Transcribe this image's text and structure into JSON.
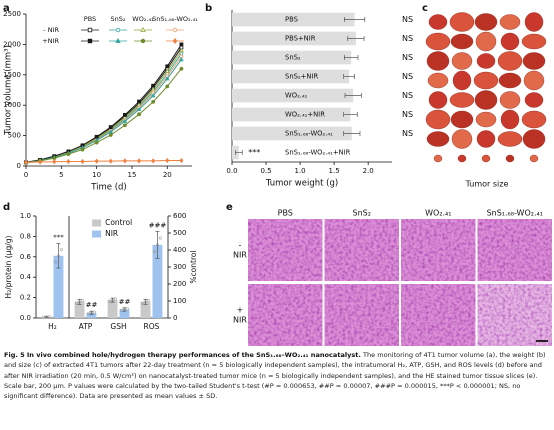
{
  "panel_labels": [
    "a",
    "b",
    "c",
    "d",
    "e"
  ],
  "chart_data": [
    {
      "type": "line",
      "xlabel": "Time (d)",
      "ylabel": "Tumor volume (mm³)",
      "x": [
        0,
        2,
        4,
        6,
        8,
        10,
        12,
        14,
        16,
        18,
        20,
        22
      ],
      "xlim": [
        0,
        23.5
      ],
      "xticks": [
        0,
        5,
        10,
        15,
        20
      ],
      "ylim": [
        0,
        2500
      ],
      "yticks": [
        0,
        500,
        1000,
        1500,
        2000,
        2500
      ],
      "legend_columns": [
        "PBS",
        "SnS₂",
        "WO₂.₄₁",
        "SnS₁.₆₈-WO₂.₄₁"
      ],
      "legend_rows": [
        "- NIR",
        "+NIR"
      ],
      "series": [
        {
          "legend_column": 0,
          "legend_row": 0,
          "color": "#1a1a1a",
          "marker": "square",
          "filled": false,
          "values": [
            60,
            100,
            160,
            235,
            330,
            470,
            625,
            820,
            1030,
            1290,
            1600,
            1950
          ]
        },
        {
          "legend_column": 1,
          "legend_row": 0,
          "color": "#2fa6a0",
          "marker": "circle",
          "filled": false,
          "values": [
            55,
            95,
            150,
            220,
            315,
            445,
            590,
            775,
            980,
            1220,
            1515,
            1850
          ]
        },
        {
          "legend_column": 2,
          "legend_row": 0,
          "color": "#9aa83a",
          "marker": "triangle",
          "filled": false,
          "values": [
            60,
            95,
            150,
            230,
            325,
            455,
            610,
            800,
            1005,
            1255,
            1560,
            1900
          ]
        },
        {
          "legend_column": 3,
          "legend_row": 0,
          "color": "#f0a070",
          "marker": "circle",
          "filled": false,
          "values": [
            55,
            90,
            145,
            215,
            305,
            430,
            575,
            755,
            955,
            1190,
            1475,
            1800
          ]
        },
        {
          "legend_column": 0,
          "legend_row": 1,
          "color": "#1a1a1a",
          "marker": "square",
          "filled": true,
          "values": [
            60,
            100,
            160,
            240,
            340,
            480,
            640,
            840,
            1060,
            1320,
            1640,
            2000
          ]
        },
        {
          "legend_column": 1,
          "legend_row": 1,
          "color": "#2fa6a0",
          "marker": "triangle",
          "filled": true,
          "values": [
            55,
            90,
            140,
            210,
            300,
            420,
            560,
            735,
            930,
            1155,
            1435,
            1750
          ]
        },
        {
          "legend_column": 2,
          "legend_row": 1,
          "color": "#6f8a2a",
          "marker": "circle",
          "filled": true,
          "values": [
            55,
            85,
            130,
            195,
            270,
            385,
            510,
            670,
            850,
            1055,
            1310,
            1600
          ]
        },
        {
          "legend_column": 3,
          "legend_row": 1,
          "color": "#f08040",
          "marker": "diamond",
          "filled": true,
          "values": [
            60,
            65,
            70,
            75,
            75,
            80,
            80,
            85,
            85,
            85,
            90,
            90
          ]
        }
      ]
    },
    {
      "type": "hbar",
      "xlabel": "Tumor weight (g)",
      "categories": [
        "PBS",
        "PBS+NIR",
        "SnS₂",
        "SnS₂+NIR",
        "WO₂.₄₁",
        "WO₂.₄₁+NIR",
        "SnS₁.₆₈-WO₂.₄₁",
        "SnS₁.₆₈-WO₂.₄₁+NIR"
      ],
      "values": [
        1.8,
        1.82,
        1.75,
        1.72,
        1.78,
        1.74,
        1.76,
        0.1
      ],
      "errors": [
        0.15,
        0.12,
        0.1,
        0.08,
        0.12,
        0.1,
        0.12,
        0.05
      ],
      "significance": [
        "NS",
        "NS",
        "NS",
        "NS",
        "NS",
        "NS",
        "NS",
        "***"
      ],
      "color": "#dedede",
      "xlim": [
        0,
        2.35
      ],
      "xticks": [
        {
          "value": 0,
          "label": "0.0"
        },
        {
          "value": 0.5,
          "label": "0.5"
        },
        {
          "value": 1,
          "label": "1.0"
        },
        {
          "value": 1.5,
          "label": "1.5"
        },
        {
          "value": 2,
          "label": "2.0"
        }
      ]
    },
    {
      "type": "bar",
      "ylabel": "H₂/protein (μg/g)",
      "y2label": "%control",
      "categories": [
        "H₂",
        "ATP",
        "GSH",
        "ROS"
      ],
      "axis_by_category": [
        "y",
        "y2",
        "y2",
        "y2"
      ],
      "ylim": [
        0,
        1
      ],
      "yticks": [
        {
          "value": 0,
          "label": "0.0"
        },
        {
          "value": 0.2,
          "label": "0.2"
        },
        {
          "value": 0.4,
          "label": "0.4"
        },
        {
          "value": 0.6,
          "label": "0.6"
        },
        {
          "value": 0.8,
          "label": "0.8"
        },
        {
          "value": 1,
          "label": "1.0"
        }
      ],
      "y2lim": [
        0,
        600
      ],
      "y2ticks": [
        0,
        100,
        200,
        300,
        400,
        500,
        600
      ],
      "legend_position": "upper-center",
      "series": [
        {
          "name": "Control",
          "color": "#c9c9c9",
          "values": [
            0.01,
            95,
            105,
            95
          ],
          "errors": [
            0.005,
            15,
            12,
            15
          ]
        },
        {
          "name": "NIR",
          "color": "#9ec3ee",
          "values": [
            0.61,
            30,
            50,
            430
          ],
          "errors": [
            0.12,
            10,
            10,
            80
          ]
        }
      ],
      "annotations": [
        "***",
        "##",
        "##",
        "###"
      ]
    }
  ],
  "tumor_photo": {
    "label": "Tumor size"
  },
  "histology": {
    "columns": [
      "PBS",
      "SnS₂",
      "WO₂.₄₁",
      "SnS₁.₆₈-WO₂.₄₁"
    ],
    "rows": [
      [
        "-",
        "NIR"
      ],
      [
        "+",
        "NIR"
      ]
    ]
  },
  "caption": {
    "label": "Fig. 5",
    "title": "In vivo combined hole/hydrogen therapy performances of the SnS₁.₆₈–WO₂.₄₁ nanocatalyst.",
    "body": "The monitoring of 4T1 tumor volume (a), the weight (b) and size (c) of extracted 4T1 tumors after 22-day treatment (n = 5 biologically independent samples), the intratumoral H₂, ATP, GSH, and ROS levels (d) before and after NIR irradiation (20 min, 0.5 W/cm²) on nanocatalyst-treated tumor mice (n = 5 biologically independent samples), and the HE stained tumor tissue slices (e). Scale bar, 200 μm. P values were calculated by the two-tailed Student's t-test (#P = 0.000653, ##P = 0.00007, ###P = 0.000015, ***P < 0.000001; NS, no significant difference). Data are presented as mean values ± SD."
  }
}
